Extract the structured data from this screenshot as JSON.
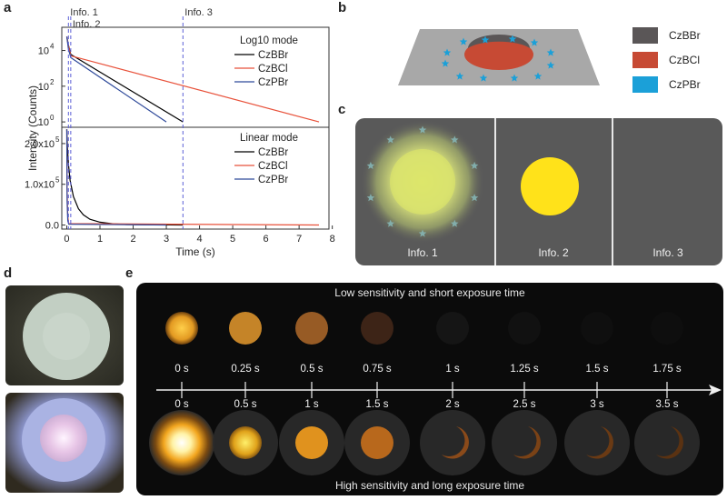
{
  "panel_labels": {
    "a": "a",
    "b": "b",
    "c": "c",
    "d": "d",
    "e": "e"
  },
  "panel_a": {
    "info_lines": [
      {
        "label": "Info. 1",
        "time_s": 0.05
      },
      {
        "label": "Info. 2",
        "time_s": 0.12
      },
      {
        "label": "Info. 3",
        "time_s": 3.5
      }
    ],
    "ylabel": "Intensity (Counts)",
    "xlabel": "Time (s)"
  },
  "chart_data": [
    {
      "type": "line",
      "title": "Log10 mode",
      "yscale": "log",
      "ylim_exp": [
        -0.3,
        5.3
      ],
      "yticks": [
        {
          "exp": 0,
          "label": "10",
          "sup": "0"
        },
        {
          "exp": 2,
          "label": "10",
          "sup": "2"
        },
        {
          "exp": 4,
          "label": "10",
          "sup": "4"
        }
      ],
      "xlim": [
        -0.15,
        7.9
      ],
      "legend_position": "right",
      "series": [
        {
          "name": "CzBBr",
          "color": "#000000",
          "x": [
            0,
            0.05,
            0.12,
            3.5
          ],
          "y": [
            60000,
            20000,
            6000,
            1
          ]
        },
        {
          "name": "CzBCl",
          "color": "#e8513a",
          "x": [
            0,
            0.05,
            0.12,
            7.6
          ],
          "y": [
            60000,
            18000,
            5000,
            1
          ]
        },
        {
          "name": "CzPBr",
          "color": "#2f4a9a",
          "x": [
            0,
            0.05,
            0.12,
            3.0
          ],
          "y": [
            60000,
            12000,
            4000,
            1
          ]
        }
      ]
    },
    {
      "type": "line",
      "title": "Linear mode",
      "yscale": "linear",
      "ylim": [
        -10000,
        240000
      ],
      "yticks": [
        {
          "value": 0,
          "label": "0.0"
        },
        {
          "value": 100000,
          "label": "1.0x10",
          "sup": "5"
        },
        {
          "value": 200000,
          "label": "2.0x10",
          "sup": "5"
        }
      ],
      "xlim": [
        -0.15,
        7.9
      ],
      "xticks": [
        0,
        1,
        2,
        3,
        4,
        5,
        6,
        7,
        8
      ],
      "legend_position": "right",
      "series": [
        {
          "name": "CzBBr",
          "color": "#000000",
          "x": [
            0,
            0.02,
            0.05,
            0.1,
            0.2,
            0.35,
            0.5,
            0.7,
            1.0,
            1.4,
            1.8,
            3.5
          ],
          "y": [
            235000,
            190000,
            150000,
            110000,
            70000,
            40000,
            25000,
            14000,
            7000,
            3000,
            1200,
            0
          ]
        },
        {
          "name": "CzBCl",
          "color": "#e8513a",
          "x": [
            0,
            0.01,
            0.03,
            0.06,
            7.6
          ],
          "y": [
            235000,
            90000,
            20000,
            3500,
            0
          ]
        },
        {
          "name": "CzPBr",
          "color": "#2f4a9a",
          "x": [
            0,
            0.01,
            0.03,
            0.06,
            3.0
          ],
          "y": [
            235000,
            60000,
            10000,
            2000,
            0
          ]
        }
      ]
    }
  ],
  "panel_b": {
    "legend": [
      {
        "label": "CzBBr",
        "color": "#5a5657"
      },
      {
        "label": "CzBCl",
        "color": "#c74a34"
      },
      {
        "label": "CzPBr",
        "color": "#1ba0d8"
      }
    ]
  },
  "panel_c": {
    "labels": [
      "Info. 1",
      "Info. 2",
      "Info. 3"
    ]
  },
  "panel_e": {
    "top_caption": "Low sensitivity and short exposure time",
    "bottom_caption": "High sensitivity and long exposure time",
    "top_times": [
      "0 s",
      "0.25 s",
      "0.5 s",
      "0.75 s",
      "1 s",
      "1.25 s",
      "1.5 s",
      "1.75 s"
    ],
    "bottom_times": [
      "0 s",
      "0.5 s",
      "1 s",
      "1.5 s",
      "2 s",
      "2.5 s",
      "3 s",
      "3.5 s"
    ]
  }
}
